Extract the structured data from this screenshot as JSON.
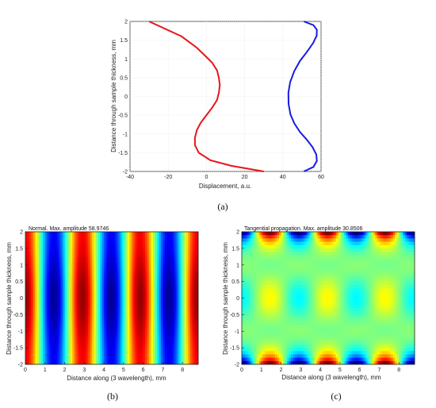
{
  "panels": {
    "a": {
      "caption": "(a)"
    },
    "b": {
      "caption": "(b)"
    },
    "c": {
      "caption": "(c)"
    }
  },
  "chart_data": [
    {
      "panel": "a",
      "type": "line",
      "title": "",
      "xlabel": "Displacement, a.u.",
      "ylabel": "Distance through sample thickness, mm",
      "xlim": [
        -40,
        60
      ],
      "ylim": [
        -2,
        2
      ],
      "xticks": [
        -40,
        -20,
        0,
        20,
        40,
        60
      ],
      "yticks": [
        -2,
        -1.5,
        -1,
        -0.5,
        0,
        0.5,
        1,
        1.5,
        2
      ],
      "grid": true,
      "series": [
        {
          "color": "#e8141a",
          "x": [
            30,
            13,
            2,
            -4,
            -6,
            -6,
            -5,
            -3,
            0,
            3,
            5.5,
            6.5,
            7,
            6.5,
            5.5,
            3,
            -1,
            -5,
            -13,
            -30
          ],
          "y": [
            -2,
            -1.85,
            -1.7,
            -1.5,
            -1.3,
            -1.1,
            -0.9,
            -0.7,
            -0.5,
            -0.3,
            -0.1,
            0.1,
            0.3,
            0.5,
            0.7,
            0.9,
            1.1,
            1.3,
            1.6,
            2
          ]
        },
        {
          "color": "#1a1ae0",
          "x": [
            51,
            56,
            57.8,
            57.5,
            55.5,
            52.5,
            49,
            46,
            44,
            43,
            42.9,
            43.8,
            46,
            49,
            52.5,
            55.8,
            57.7,
            57.8,
            56,
            51
          ],
          "y": [
            -2,
            -1.88,
            -1.72,
            -1.55,
            -1.35,
            -1.15,
            -0.95,
            -0.72,
            -0.48,
            -0.2,
            0.1,
            0.38,
            0.68,
            0.95,
            1.18,
            1.42,
            1.62,
            1.78,
            1.9,
            2
          ]
        }
      ]
    },
    {
      "panel": "b",
      "type": "heatmap",
      "title": "Normal. Max. amplitude 58.9746",
      "xlabel": "Distance along (3 wavelength), mm",
      "ylabel": "Distance through sample thickness, mm",
      "xlim": [
        0,
        8.8
      ],
      "ylim": [
        -2,
        2
      ],
      "xticks": [
        0,
        1,
        2,
        3,
        4,
        5,
        6,
        7,
        8
      ],
      "yticks": [
        -2,
        -1.5,
        -1,
        -0.5,
        0,
        0.5,
        1,
        1.5,
        2
      ],
      "colormap": "jet"
    },
    {
      "panel": "c",
      "type": "heatmap",
      "title": "Tangential propagation. Max. amplitude 30.8506",
      "xlabel": "Distance along (3 wavelength), mm",
      "ylabel": "Distance through sample thickness, mm",
      "xlim": [
        0,
        8.8
      ],
      "ylim": [
        -2,
        2
      ],
      "xticks": [
        0,
        1,
        2,
        3,
        4,
        5,
        6,
        7,
        8
      ],
      "yticks": [
        -2,
        -1.5,
        -1,
        -0.5,
        0,
        0.5,
        1,
        1.5,
        2
      ],
      "colormap": "jet"
    }
  ]
}
